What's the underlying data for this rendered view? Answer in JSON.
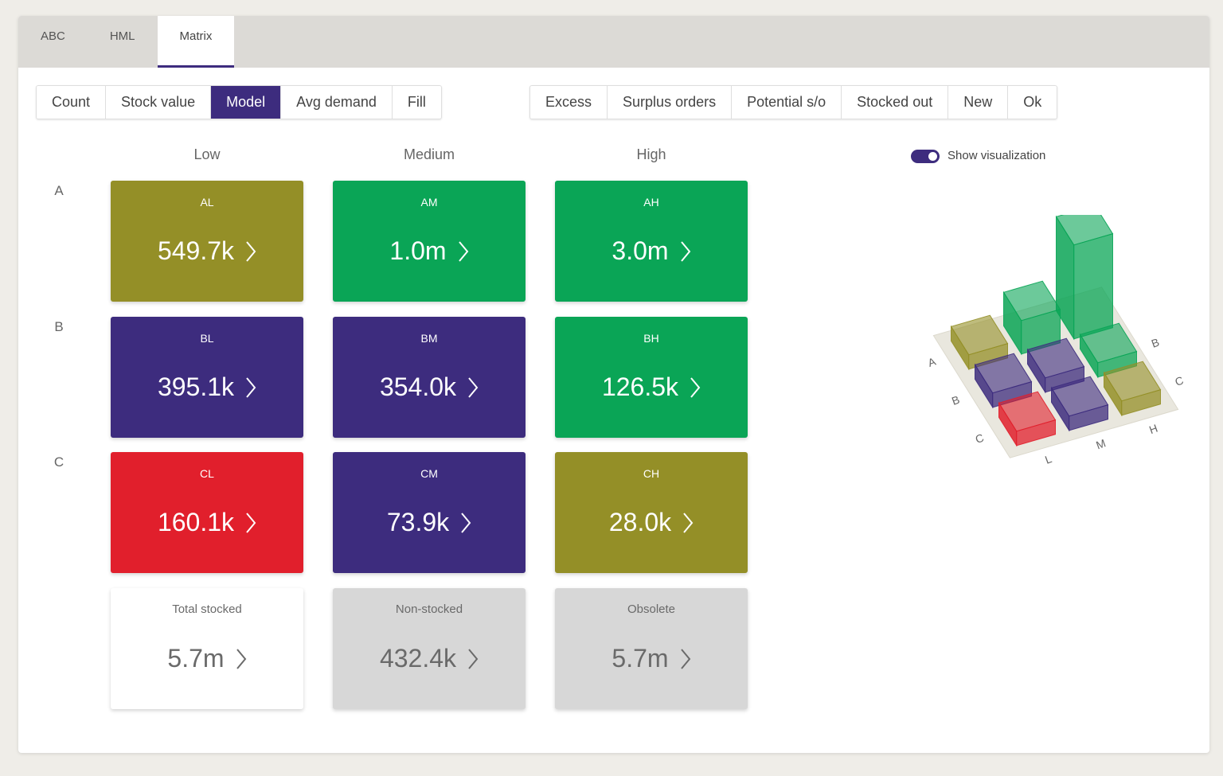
{
  "tabs": {
    "items": [
      "ABC",
      "HML",
      "Matrix"
    ],
    "active": 2
  },
  "metrics": {
    "items": [
      "Count",
      "Stock value",
      "Model",
      "Avg demand",
      "Fill"
    ],
    "active": 2
  },
  "filters": {
    "items": [
      "Excess",
      "Surplus orders",
      "Potential s/o",
      "Stocked out",
      "New",
      "Ok"
    ]
  },
  "matrix": {
    "columns": [
      "Low",
      "Medium",
      "High"
    ],
    "rows": [
      {
        "label": "A",
        "cells": [
          {
            "code": "AL",
            "value": "549.7k",
            "color": "#948f27"
          },
          {
            "code": "AM",
            "value": "1.0m",
            "color": "#0aa556"
          },
          {
            "code": "AH",
            "value": "3.0m",
            "color": "#0aa556"
          }
        ]
      },
      {
        "label": "B",
        "cells": [
          {
            "code": "BL",
            "value": "395.1k",
            "color": "#3d2c7e"
          },
          {
            "code": "BM",
            "value": "354.0k",
            "color": "#3d2c7e"
          },
          {
            "code": "BH",
            "value": "126.5k",
            "color": "#0aa556"
          }
        ]
      },
      {
        "label": "C",
        "cells": [
          {
            "code": "CL",
            "value": "160.1k",
            "color": "#e11f2c"
          },
          {
            "code": "CM",
            "value": "73.9k",
            "color": "#3d2c7e"
          },
          {
            "code": "CH",
            "value": "28.0k",
            "color": "#948f27"
          }
        ]
      }
    ]
  },
  "totals": [
    {
      "label": "Total stocked",
      "value": "5.7m",
      "color": "#ffffff"
    },
    {
      "label": "Non-stocked",
      "value": "432.4k",
      "color": "#d7d7d7"
    },
    {
      "label": "Obsolete",
      "value": "5.7m",
      "color": "#d7d7d7"
    }
  ],
  "visualization": {
    "toggle_label": "Show visualization",
    "enabled": true,
    "row_labels": [
      "A",
      "B",
      "C"
    ],
    "column_labels": [
      "L",
      "M",
      "H"
    ]
  }
}
